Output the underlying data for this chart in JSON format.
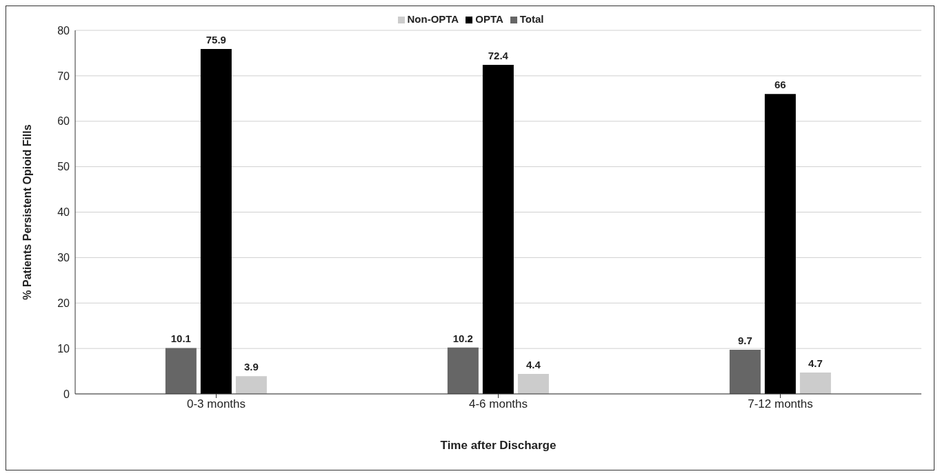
{
  "chart_data": {
    "type": "bar",
    "xlabel": "Time after Discharge",
    "ylabel": "% Patients Persistent Opioid Fills",
    "categories": [
      "0-3 months",
      "4-6 months",
      "7-12 months"
    ],
    "series": [
      {
        "name": "Total",
        "color": "#666666",
        "values": [
          10.1,
          10.2,
          9.7
        ]
      },
      {
        "name": "OPTA",
        "color": "#000000",
        "values": [
          75.9,
          72.4,
          66
        ]
      },
      {
        "name": "Non-OPTA",
        "color": "#cccccc",
        "values": [
          3.9,
          4.4,
          4.7
        ]
      }
    ],
    "ylim": [
      0,
      80
    ],
    "yticks": [
      0,
      10,
      20,
      30,
      40,
      50,
      60,
      70,
      80
    ],
    "grid": "y",
    "legend": "top",
    "data_labels": true
  }
}
